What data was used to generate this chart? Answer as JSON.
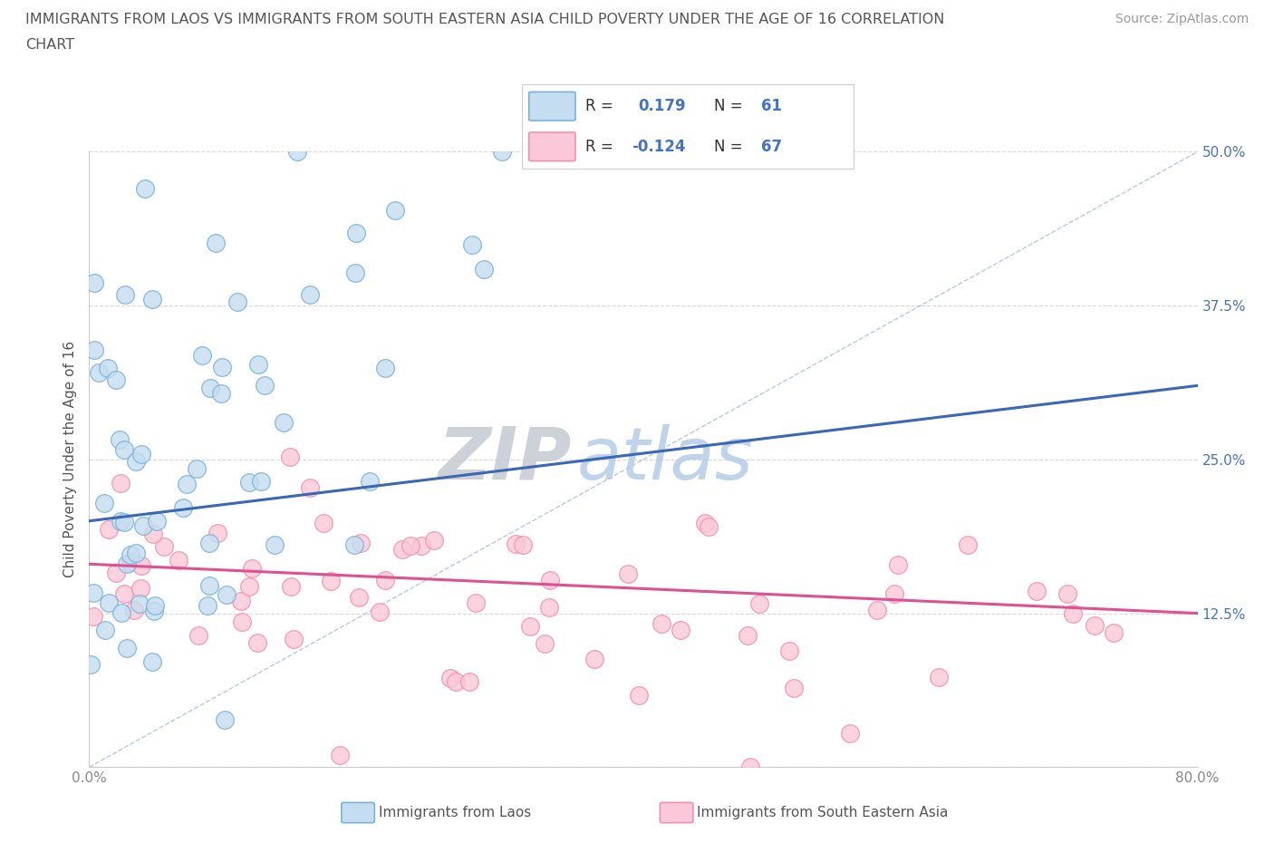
{
  "title_line1": "IMMIGRANTS FROM LAOS VS IMMIGRANTS FROM SOUTH EASTERN ASIA CHILD POVERTY UNDER THE AGE OF 16 CORRELATION",
  "title_line2": "CHART",
  "source": "Source: ZipAtlas.com",
  "ylabel": "Child Poverty Under the Age of 16",
  "xlim": [
    0,
    0.8
  ],
  "ylim": [
    0,
    0.5
  ],
  "xticks": [
    0.0,
    0.1,
    0.2,
    0.3,
    0.4,
    0.5,
    0.6,
    0.7,
    0.8
  ],
  "xticklabels": [
    "0.0%",
    "",
    "",
    "",
    "",
    "",
    "",
    "",
    "80.0%"
  ],
  "yticks": [
    0.0,
    0.125,
    0.25,
    0.375,
    0.5
  ],
  "yticklabels_right": [
    "",
    "12.5%",
    "25.0%",
    "37.5%",
    "50.0%"
  ],
  "laos_R": 0.179,
  "laos_N": 61,
  "sea_R": -0.124,
  "sea_N": 67,
  "blue_edge": "#7ab3d8",
  "blue_face": "#c5ddf0",
  "pink_edge": "#f48fb1",
  "pink_face": "#fac8d8",
  "trend_blue": "#3a68b5",
  "trend_pink": "#e05090",
  "ref_line_color": "#aabbd4",
  "legend_label_blue": "Immigrants from Laos",
  "legend_label_pink": "Immigrants from South Eastern Asia",
  "watermark_zip": "ZIP",
  "watermark_atlas": "atlas",
  "watermark_zip_color": "#c8cdd4",
  "watermark_atlas_color": "#b8cfe8",
  "background_color": "#ffffff",
  "grid_color": "#d8d8d8",
  "tick_color": "#888888",
  "right_tick_color": "#4472c4",
  "title_color": "#555555",
  "source_color": "#999999",
  "legend_text_black": "#333333",
  "legend_text_blue": "#4472c4"
}
